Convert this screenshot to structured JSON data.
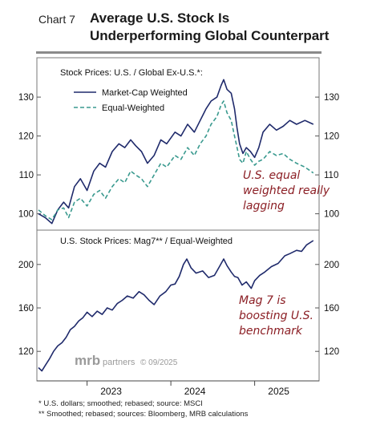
{
  "header": {
    "chart_number": "Chart 7",
    "title_line1": "Average U.S. Stock Is",
    "title_line2": "Underperforming Global Counterpart"
  },
  "footnotes": {
    "note1": "*  U.S. dollars; smoothed; rebased; source: MSCI",
    "note2": "** Smoothed; rebased; sources: Bloomberg, MRB calculations"
  },
  "watermark": {
    "brand": "mrb",
    "brand_suffix": "partners",
    "copyright": "© 09/2025"
  },
  "x_axis": {
    "ticks": [
      "2023",
      "2024",
      "2025"
    ],
    "tick_values": [
      2023.0,
      2024.0,
      2025.0
    ],
    "xlim": [
      2022.42,
      2025.75
    ]
  },
  "colors": {
    "navy": "#1f2a6b",
    "teal": "#3a9a8f",
    "annotation": "#8b1e24"
  },
  "chart_data": [
    {
      "type": "line",
      "title": "Stock Prices: U.S. / Global Ex-U.S.*:",
      "ylim": [
        96,
        136
      ],
      "yticks": [
        100,
        110,
        120,
        130
      ],
      "annotation": {
        "lines": [
          "U.S. equal",
          "weighted really",
          "lagging"
        ]
      },
      "series": [
        {
          "name": "Market-Cap Weighted",
          "style": "solid",
          "color": "#1f2a6b",
          "points": [
            [
              2022.42,
              100
            ],
            [
              2022.5,
              99
            ],
            [
              2022.58,
              97.5
            ],
            [
              2022.65,
              101
            ],
            [
              2022.72,
              103
            ],
            [
              2022.78,
              101.5
            ],
            [
              2022.85,
              107
            ],
            [
              2022.92,
              109
            ],
            [
              2023.0,
              106
            ],
            [
              2023.08,
              111
            ],
            [
              2023.15,
              113
            ],
            [
              2023.22,
              112
            ],
            [
              2023.3,
              116
            ],
            [
              2023.38,
              118
            ],
            [
              2023.45,
              117
            ],
            [
              2023.52,
              119
            ],
            [
              2023.58,
              117.5
            ],
            [
              2023.65,
              116
            ],
            [
              2023.72,
              113
            ],
            [
              2023.8,
              115
            ],
            [
              2023.88,
              119
            ],
            [
              2023.95,
              118
            ],
            [
              2024.05,
              121
            ],
            [
              2024.12,
              120
            ],
            [
              2024.2,
              123
            ],
            [
              2024.28,
              121
            ],
            [
              2024.35,
              124
            ],
            [
              2024.42,
              127
            ],
            [
              2024.48,
              129
            ],
            [
              2024.55,
              130
            ],
            [
              2024.6,
              133
            ],
            [
              2024.63,
              134.5
            ],
            [
              2024.67,
              132
            ],
            [
              2024.72,
              131
            ],
            [
              2024.76,
              127
            ],
            [
              2024.79,
              122
            ],
            [
              2024.82,
              118
            ],
            [
              2024.86,
              115.5
            ],
            [
              2024.9,
              117
            ],
            [
              2024.95,
              116
            ],
            [
              2025.0,
              114.5
            ],
            [
              2025.05,
              117
            ],
            [
              2025.1,
              121
            ],
            [
              2025.18,
              123
            ],
            [
              2025.26,
              121.5
            ],
            [
              2025.34,
              122.5
            ],
            [
              2025.42,
              124
            ],
            [
              2025.5,
              123
            ],
            [
              2025.6,
              124
            ],
            [
              2025.7,
              123
            ]
          ]
        },
        {
          "name": "Equal-Weighted",
          "style": "dashed",
          "color": "#3a9a8f",
          "points": [
            [
              2022.42,
              101
            ],
            [
              2022.5,
              99.5
            ],
            [
              2022.58,
              98.5
            ],
            [
              2022.65,
              101
            ],
            [
              2022.72,
              101.5
            ],
            [
              2022.78,
              99
            ],
            [
              2022.85,
              103
            ],
            [
              2022.92,
              104
            ],
            [
              2023.0,
              102
            ],
            [
              2023.08,
              105
            ],
            [
              2023.15,
              106
            ],
            [
              2023.22,
              104
            ],
            [
              2023.3,
              107
            ],
            [
              2023.38,
              109
            ],
            [
              2023.45,
              108
            ],
            [
              2023.52,
              111
            ],
            [
              2023.58,
              110
            ],
            [
              2023.65,
              109
            ],
            [
              2023.72,
              107
            ],
            [
              2023.8,
              110
            ],
            [
              2023.88,
              113
            ],
            [
              2023.95,
              112
            ],
            [
              2024.05,
              115
            ],
            [
              2024.12,
              114
            ],
            [
              2024.2,
              117
            ],
            [
              2024.28,
              115
            ],
            [
              2024.35,
              118
            ],
            [
              2024.42,
              120
            ],
            [
              2024.48,
              123
            ],
            [
              2024.55,
              125
            ],
            [
              2024.6,
              128
            ],
            [
              2024.63,
              129
            ],
            [
              2024.67,
              126
            ],
            [
              2024.72,
              124
            ],
            [
              2024.76,
              120
            ],
            [
              2024.79,
              117
            ],
            [
              2024.82,
              114
            ],
            [
              2024.86,
              113
            ],
            [
              2024.9,
              116
            ],
            [
              2024.95,
              114
            ],
            [
              2025.0,
              112.5
            ],
            [
              2025.05,
              113.5
            ],
            [
              2025.1,
              114
            ],
            [
              2025.18,
              116
            ],
            [
              2025.26,
              115
            ],
            [
              2025.34,
              115.5
            ],
            [
              2025.42,
              114
            ],
            [
              2025.5,
              113
            ],
            [
              2025.6,
              112
            ],
            [
              2025.7,
              110.5
            ]
          ]
        }
      ]
    },
    {
      "type": "line",
      "title": "U.S. Stock Prices: Mag7** / Equal-Weighted",
      "ylim": [
        98,
        222
      ],
      "yticks": [
        120,
        160,
        200
      ],
      "annotation": {
        "lines": [
          "Mag 7 is",
          "boosting U.S.",
          "benchmark"
        ]
      },
      "series": [
        {
          "color": "#1f2a6b",
          "style": "solid",
          "points": [
            [
              2022.42,
              105
            ],
            [
              2022.46,
              102
            ],
            [
              2022.5,
              107
            ],
            [
              2022.55,
              113
            ],
            [
              2022.6,
              120
            ],
            [
              2022.65,
              125
            ],
            [
              2022.7,
              128
            ],
            [
              2022.75,
              133
            ],
            [
              2022.8,
              140
            ],
            [
              2022.85,
              143
            ],
            [
              2022.9,
              148
            ],
            [
              2022.95,
              151
            ],
            [
              2023.0,
              156
            ],
            [
              2023.06,
              152
            ],
            [
              2023.12,
              157
            ],
            [
              2023.18,
              154
            ],
            [
              2023.24,
              160
            ],
            [
              2023.3,
              158
            ],
            [
              2023.36,
              164
            ],
            [
              2023.42,
              167
            ],
            [
              2023.48,
              171
            ],
            [
              2023.55,
              169
            ],
            [
              2023.62,
              175
            ],
            [
              2023.68,
              172
            ],
            [
              2023.74,
              167
            ],
            [
              2023.8,
              163
            ],
            [
              2023.87,
              171
            ],
            [
              2023.94,
              175
            ],
            [
              2024.0,
              181
            ],
            [
              2024.05,
              182
            ],
            [
              2024.1,
              189
            ],
            [
              2024.15,
              200
            ],
            [
              2024.19,
              205
            ],
            [
              2024.24,
              197
            ],
            [
              2024.3,
              192
            ],
            [
              2024.38,
              194
            ],
            [
              2024.45,
              188
            ],
            [
              2024.52,
              190
            ],
            [
              2024.58,
              198
            ],
            [
              2024.63,
              205
            ],
            [
              2024.67,
              199
            ],
            [
              2024.72,
              193
            ],
            [
              2024.76,
              189
            ],
            [
              2024.8,
              188
            ],
            [
              2024.85,
              181
            ],
            [
              2024.9,
              184
            ],
            [
              2024.96,
              178
            ],
            [
              2025.0,
              185
            ],
            [
              2025.06,
              190
            ],
            [
              2025.12,
              193
            ],
            [
              2025.2,
              198
            ],
            [
              2025.28,
              201
            ],
            [
              2025.36,
              208
            ],
            [
              2025.42,
              210
            ],
            [
              2025.5,
              213
            ],
            [
              2025.56,
              212
            ],
            [
              2025.62,
              218
            ],
            [
              2025.7,
              222
            ]
          ]
        }
      ]
    }
  ]
}
